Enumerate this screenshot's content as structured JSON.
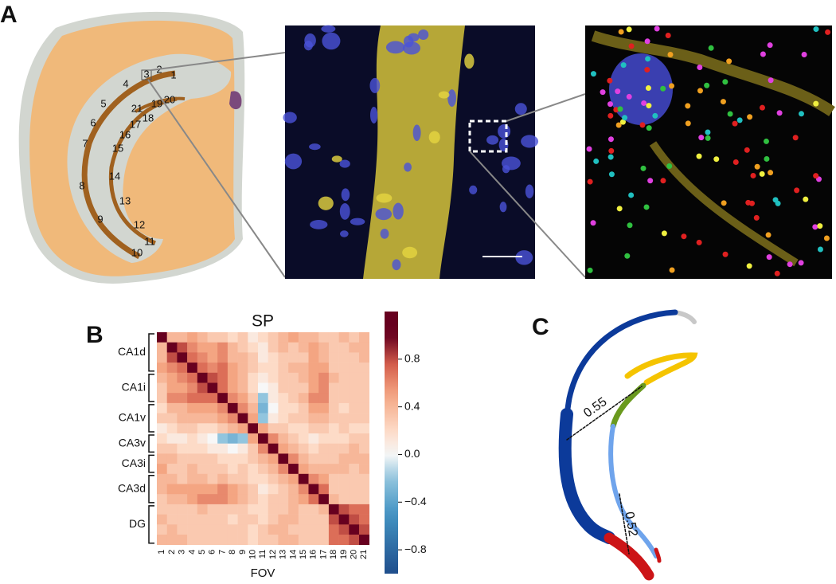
{
  "panel_labels": [
    "A",
    "B",
    "C"
  ],
  "panel_a": {
    "region_labels": [
      "1",
      "2",
      "3",
      "4",
      "5",
      "6",
      "7",
      "8",
      "9",
      "10",
      "11",
      "12",
      "13",
      "14",
      "15",
      "16",
      "17",
      "18",
      "19",
      "20",
      "21"
    ]
  },
  "panel_c": {
    "distance_labels": [
      "0.55",
      "0.52"
    ]
  },
  "chart_data": {
    "type": "heatmap",
    "title": "SP",
    "xlabel": "FOV",
    "colormap": "RdBu_r",
    "categories": [
      "1",
      "2",
      "3",
      "4",
      "5",
      "6",
      "7",
      "8",
      "9",
      "10",
      "11",
      "12",
      "13",
      "14",
      "15",
      "16",
      "17",
      "18",
      "19",
      "20",
      "21"
    ],
    "row_groups": [
      {
        "name": "CA1d",
        "rows": [
          0,
          3
        ]
      },
      {
        "name": "CA1i",
        "rows": [
          4,
          6
        ]
      },
      {
        "name": "CA1v",
        "rows": [
          7,
          9
        ]
      },
      {
        "name": "CA3v",
        "rows": [
          10,
          11
        ]
      },
      {
        "name": "CA3i",
        "rows": [
          12,
          13
        ]
      },
      {
        "name": "CA3d",
        "rows": [
          14,
          16
        ]
      },
      {
        "name": "DG",
        "rows": [
          17,
          20
        ]
      }
    ],
    "values": [
      [
        1.0,
        0.4,
        0.4,
        0.5,
        0.4,
        0.3,
        0.3,
        0.2,
        0.3,
        0.1,
        0.2,
        0.3,
        0.4,
        0.5,
        0.4,
        0.4,
        0.3,
        0.3,
        0.4,
        0.3,
        0.4
      ],
      [
        0.4,
        1.0,
        0.8,
        0.6,
        0.5,
        0.5,
        0.6,
        0.4,
        0.3,
        0.2,
        0.1,
        0.3,
        0.4,
        0.3,
        0.4,
        0.5,
        0.4,
        0.3,
        0.3,
        0.4,
        0.4
      ],
      [
        0.4,
        0.8,
        1.0,
        0.7,
        0.6,
        0.5,
        0.6,
        0.4,
        0.4,
        0.3,
        0.1,
        0.2,
        0.3,
        0.3,
        0.3,
        0.5,
        0.4,
        0.3,
        0.3,
        0.3,
        0.4
      ],
      [
        0.5,
        0.6,
        0.7,
        1.0,
        0.7,
        0.6,
        0.7,
        0.5,
        0.4,
        0.3,
        0.2,
        0.2,
        0.3,
        0.4,
        0.4,
        0.5,
        0.5,
        0.3,
        0.3,
        0.3,
        0.3
      ],
      [
        0.4,
        0.5,
        0.6,
        0.7,
        1.0,
        0.8,
        0.7,
        0.5,
        0.4,
        0.2,
        0.1,
        0.2,
        0.3,
        0.3,
        0.4,
        0.5,
        0.6,
        0.4,
        0.3,
        0.3,
        0.3
      ],
      [
        0.3,
        0.5,
        0.5,
        0.6,
        0.8,
        1.0,
        0.7,
        0.5,
        0.4,
        0.2,
        0.0,
        0.1,
        0.3,
        0.3,
        0.3,
        0.5,
        0.6,
        0.3,
        0.3,
        0.3,
        0.3
      ],
      [
        0.3,
        0.6,
        0.6,
        0.7,
        0.7,
        0.7,
        1.0,
        0.6,
        0.5,
        0.3,
        -0.2,
        0.1,
        0.2,
        0.3,
        0.4,
        0.6,
        0.6,
        0.3,
        0.3,
        0.3,
        0.3
      ],
      [
        0.2,
        0.4,
        0.4,
        0.5,
        0.5,
        0.5,
        0.6,
        1.0,
        0.6,
        0.4,
        -0.3,
        0.0,
        0.2,
        0.2,
        0.3,
        0.5,
        0.5,
        0.3,
        0.2,
        0.3,
        0.3
      ],
      [
        0.3,
        0.3,
        0.4,
        0.4,
        0.4,
        0.4,
        0.5,
        0.6,
        1.0,
        0.5,
        -0.2,
        0.1,
        0.2,
        0.3,
        0.3,
        0.4,
        0.4,
        0.3,
        0.3,
        0.3,
        0.3
      ],
      [
        0.1,
        0.2,
        0.3,
        0.3,
        0.2,
        0.2,
        0.3,
        0.4,
        0.5,
        1.0,
        0.5,
        0.3,
        0.3,
        0.2,
        0.2,
        0.3,
        0.3,
        0.2,
        0.3,
        0.2,
        0.2
      ],
      [
        0.2,
        0.1,
        0.1,
        0.2,
        0.1,
        0.0,
        -0.2,
        -0.3,
        -0.2,
        0.5,
        1.0,
        0.6,
        0.4,
        0.3,
        0.2,
        0.1,
        0.2,
        0.2,
        0.2,
        0.3,
        0.3
      ],
      [
        0.3,
        0.3,
        0.2,
        0.2,
        0.2,
        0.1,
        0.1,
        0.0,
        0.1,
        0.3,
        0.6,
        1.0,
        0.5,
        0.4,
        0.3,
        0.2,
        0.3,
        0.3,
        0.3,
        0.4,
        0.3
      ],
      [
        0.4,
        0.4,
        0.3,
        0.3,
        0.3,
        0.3,
        0.2,
        0.2,
        0.2,
        0.3,
        0.4,
        0.5,
        1.0,
        0.6,
        0.4,
        0.3,
        0.3,
        0.3,
        0.4,
        0.4,
        0.4
      ],
      [
        0.5,
        0.3,
        0.3,
        0.4,
        0.3,
        0.3,
        0.3,
        0.2,
        0.3,
        0.2,
        0.3,
        0.4,
        0.6,
        1.0,
        0.5,
        0.4,
        0.4,
        0.4,
        0.4,
        0.3,
        0.4
      ],
      [
        0.4,
        0.4,
        0.3,
        0.4,
        0.4,
        0.3,
        0.4,
        0.3,
        0.3,
        0.2,
        0.2,
        0.3,
        0.4,
        0.5,
        1.0,
        0.6,
        0.5,
        0.3,
        0.3,
        0.3,
        0.3
      ],
      [
        0.4,
        0.5,
        0.5,
        0.5,
        0.5,
        0.5,
        0.6,
        0.5,
        0.4,
        0.3,
        0.1,
        0.2,
        0.3,
        0.4,
        0.6,
        1.0,
        0.7,
        0.3,
        0.3,
        0.3,
        0.3
      ],
      [
        0.3,
        0.4,
        0.4,
        0.5,
        0.6,
        0.6,
        0.6,
        0.5,
        0.4,
        0.3,
        0.2,
        0.3,
        0.3,
        0.4,
        0.5,
        0.7,
        1.0,
        0.4,
        0.3,
        0.3,
        0.3
      ],
      [
        0.3,
        0.3,
        0.3,
        0.3,
        0.4,
        0.3,
        0.3,
        0.3,
        0.3,
        0.2,
        0.2,
        0.3,
        0.3,
        0.4,
        0.3,
        0.3,
        0.4,
        1.0,
        0.8,
        0.7,
        0.7
      ],
      [
        0.4,
        0.3,
        0.3,
        0.3,
        0.3,
        0.3,
        0.3,
        0.2,
        0.3,
        0.3,
        0.2,
        0.3,
        0.4,
        0.4,
        0.3,
        0.3,
        0.3,
        0.8,
        1.0,
        0.8,
        0.7
      ],
      [
        0.3,
        0.4,
        0.3,
        0.3,
        0.3,
        0.3,
        0.3,
        0.3,
        0.3,
        0.2,
        0.3,
        0.4,
        0.4,
        0.3,
        0.3,
        0.3,
        0.3,
        0.7,
        0.8,
        1.0,
        0.8
      ],
      [
        0.4,
        0.4,
        0.4,
        0.3,
        0.3,
        0.3,
        0.3,
        0.3,
        0.3,
        0.2,
        0.3,
        0.3,
        0.4,
        0.4,
        0.3,
        0.3,
        0.3,
        0.7,
        0.7,
        0.8,
        1.0
      ]
    ],
    "clim": [
      -1,
      1.2
    ],
    "cticks": [
      0.8,
      0.4,
      {
        "value": 0,
        "label": "0.0"
      },
      {
        "value": -0.4,
        "label": "−0.4"
      },
      {
        "value": -0.8,
        "label": "−0.8"
      }
    ]
  }
}
